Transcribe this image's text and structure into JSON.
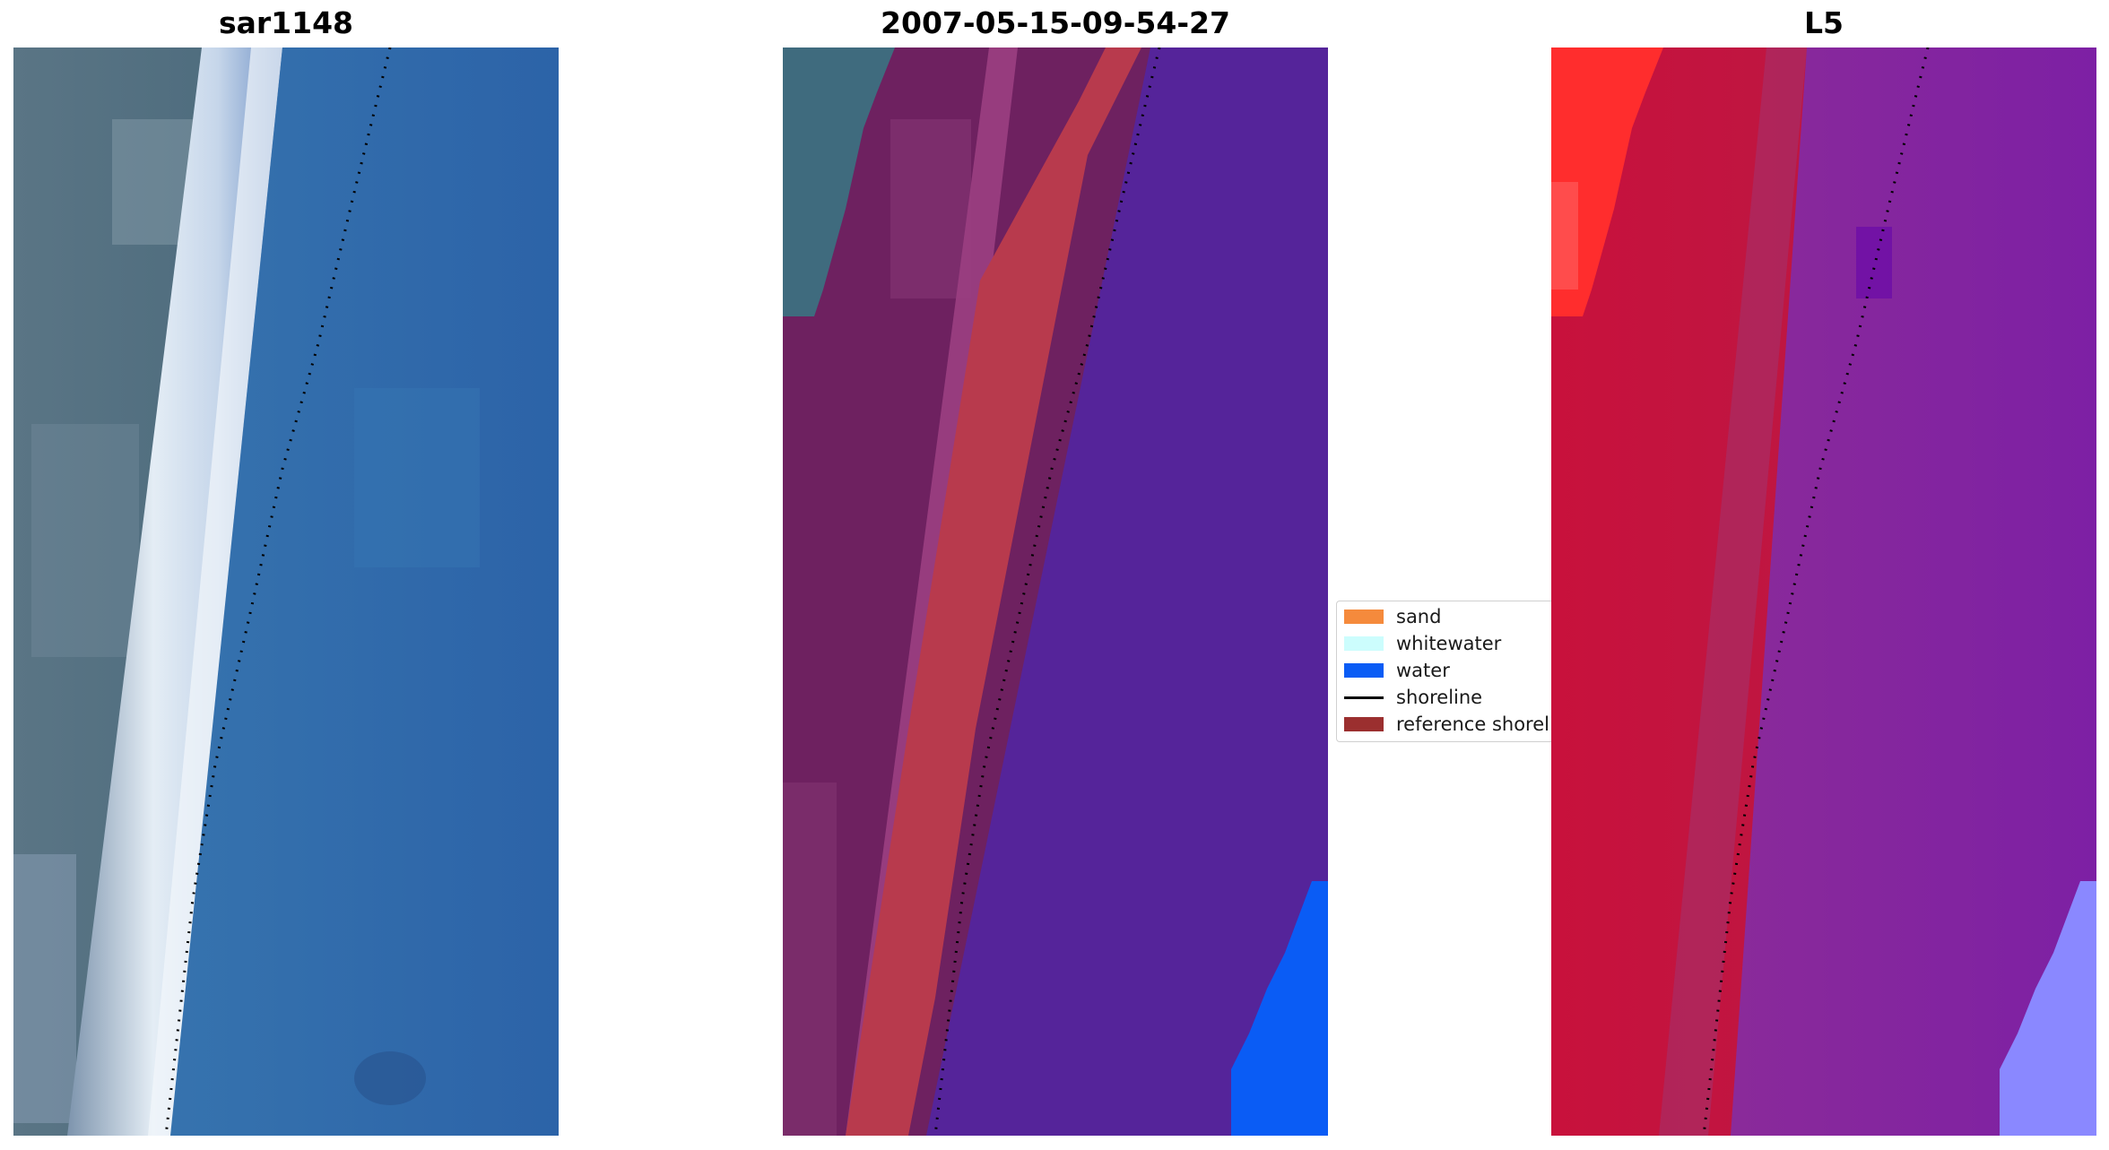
{
  "panels": [
    {
      "title": "sar1148"
    },
    {
      "title": "2007-05-15-09-54-27"
    },
    {
      "title": "L5"
    }
  ],
  "legend": {
    "items": [
      {
        "label": "sand",
        "color": "#f58a3c",
        "kind": "patch"
      },
      {
        "label": "whitewater",
        "color": "#ccfdfd",
        "kind": "patch"
      },
      {
        "label": "water",
        "color": "#0a5cf5",
        "kind": "patch"
      },
      {
        "label": "shoreline",
        "color": "#000000",
        "kind": "line"
      },
      {
        "label": "reference shoreline",
        "color": "#9b2f2f",
        "kind": "patch"
      }
    ]
  },
  "colors": {
    "rgb_sand": "#4f6f80",
    "rgb_beach": "#d8e6f2",
    "rgb_water": "#2f6aa8",
    "class_land": "#6e2160",
    "class_land_light": "#8a3a78",
    "class_water": "#55249a",
    "class_water_bright": "#0a5cf5",
    "class_ref": "#b83a4d",
    "class_teal": "#3f6b7e",
    "mndwi_land": "#c2143e",
    "mndwi_land_bright": "#ff2d2d",
    "mndwi_water": "#7a1fa0",
    "mndwi_water_light": "#8a88ff",
    "shoreline_dots": "#000000"
  }
}
